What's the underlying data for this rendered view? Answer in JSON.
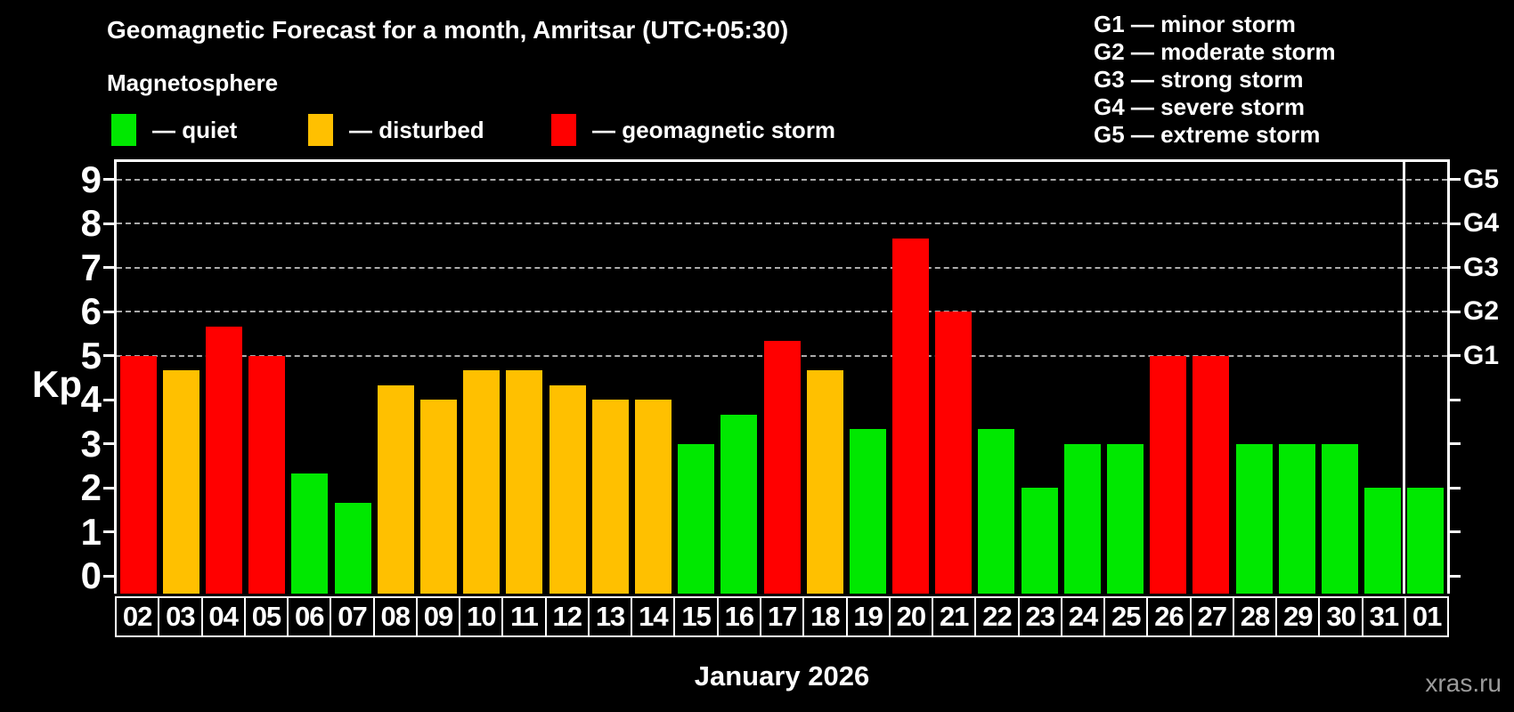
{
  "title": "Geomagnetic Forecast for a month, Amritsar (UTC+05:30)",
  "subtitle": "Magnetosphere",
  "legend": {
    "items": [
      {
        "key": "quiet",
        "label": "— quiet"
      },
      {
        "key": "disturbed",
        "label": "— disturbed"
      },
      {
        "key": "storm",
        "label": "— geomagnetic storm"
      }
    ]
  },
  "g_legend": [
    "G1 — minor storm",
    "G2 — moderate storm",
    "G3 — strong storm",
    "G4 — severe storm",
    "G5 — extreme storm"
  ],
  "g_scale": [
    {
      "code": "G1",
      "kp": 5
    },
    {
      "code": "G2",
      "kp": 6
    },
    {
      "code": "G3",
      "kp": 7
    },
    {
      "code": "G4",
      "kp": 8
    },
    {
      "code": "G5",
      "kp": 9
    }
  ],
  "y_axis": {
    "label": "Kp",
    "ticks": [
      0,
      1,
      2,
      3,
      4,
      5,
      6,
      7,
      8,
      9
    ]
  },
  "x_axis": {
    "month_label": "January 2026"
  },
  "watermark": "xras.ru",
  "colors": {
    "quiet": "#00e800",
    "disturbed": "#ffc000",
    "storm": "#ff0000",
    "background": "#000000",
    "grid": "#ababab",
    "axis": "#ffffff",
    "watermark": "#9b9b9b"
  },
  "chart_data": {
    "type": "bar",
    "title": "Geomagnetic Forecast for a month, Amritsar (UTC+05:30)",
    "subtitle": "Magnetosphere",
    "xlabel": "January 2026",
    "ylabel": "Kp",
    "ylim": [
      0,
      9
    ],
    "grid": "horizontal dashed lines at Kp 5,6,7,8,9 (G1–G5)",
    "legend_position": "top-left and top-right",
    "categories": [
      "02",
      "03",
      "04",
      "05",
      "06",
      "07",
      "08",
      "09",
      "10",
      "11",
      "12",
      "13",
      "14",
      "15",
      "16",
      "17",
      "18",
      "19",
      "20",
      "21",
      "22",
      "23",
      "24",
      "25",
      "26",
      "27",
      "28",
      "29",
      "30",
      "31",
      "01"
    ],
    "values": [
      5,
      4.67,
      5.67,
      5,
      2.33,
      1.67,
      4.33,
      4,
      4.67,
      4.67,
      4.33,
      4,
      4,
      3,
      3.67,
      5.33,
      4.67,
      3.33,
      7.67,
      6,
      3.33,
      2,
      3,
      3,
      5,
      5,
      3,
      3,
      3,
      2,
      2
    ],
    "status": [
      "storm",
      "disturbed",
      "storm",
      "storm",
      "quiet",
      "quiet",
      "disturbed",
      "disturbed",
      "disturbed",
      "disturbed",
      "disturbed",
      "disturbed",
      "disturbed",
      "quiet",
      "quiet",
      "storm",
      "disturbed",
      "quiet",
      "storm",
      "storm",
      "quiet",
      "quiet",
      "quiet",
      "quiet",
      "storm",
      "storm",
      "quiet",
      "quiet",
      "quiet",
      "quiet",
      "quiet"
    ]
  }
}
